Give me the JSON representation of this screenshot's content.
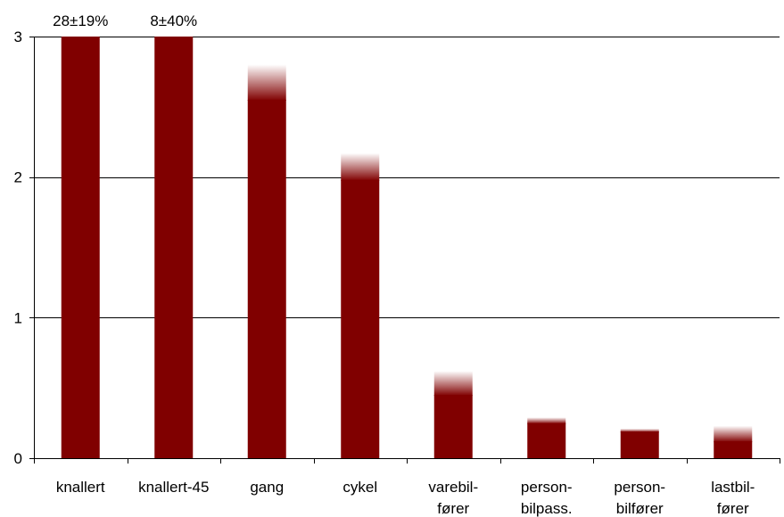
{
  "chart_data": {
    "type": "bar",
    "categories": [
      [
        "knallert"
      ],
      [
        "knallert-45"
      ],
      [
        "gang"
      ],
      [
        "cykel"
      ],
      [
        "varebil-",
        "fører"
      ],
      [
        "person-",
        "bilpass."
      ],
      [
        "person-",
        "bilfører"
      ],
      [
        "lastbil-",
        "fører"
      ]
    ],
    "values": [
      3,
      3,
      2.55,
      1.98,
      0.45,
      0.25,
      0.19,
      0.12
    ],
    "upper": [
      3,
      3,
      2.8,
      2.17,
      0.62,
      0.29,
      0.21,
      0.23
    ],
    "annotations": [
      "28±19%",
      "8±40%"
    ],
    "annotation_categories": [
      0,
      1
    ],
    "y_ticks": [
      "0",
      "1",
      "2",
      "3"
    ],
    "ylim": [
      0,
      3
    ],
    "grid": true,
    "title": "",
    "xlabel": "",
    "ylabel": "",
    "colors": {
      "bar": "#800000",
      "fade": "#ffffff",
      "grid": "#000000"
    }
  }
}
